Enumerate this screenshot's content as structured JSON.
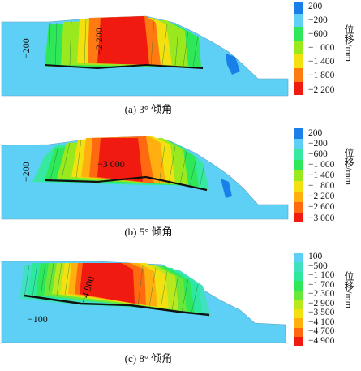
{
  "panels": [
    {
      "caption": "(a)  3° 倾角",
      "legend_values": [
        "200",
        "−200",
        "−600",
        "−1 000",
        "−1 400",
        "−1 800",
        "−2 200"
      ],
      "legend_colors": [
        "#1a7fe8",
        "#5fd0f5",
        "#2ee85a",
        "#9ae81e",
        "#f2e010",
        "#ff7a10",
        "#f01a10"
      ],
      "contour_labels": [
        "−200",
        "−2 200"
      ],
      "unit": "位移/mm"
    },
    {
      "caption": "(b)  5° 倾角",
      "legend_values": [
        "200",
        "−200",
        "−600",
        "−1 000",
        "−1 400",
        "−1 800",
        "−2 200",
        "−2 600",
        "−3 000"
      ],
      "legend_colors": [
        "#1a7fe8",
        "#5fd0f5",
        "#37e8a0",
        "#2ee85a",
        "#9ae81e",
        "#f2e010",
        "#ffb010",
        "#ff6a10",
        "#f01a10"
      ],
      "contour_labels": [
        "−200",
        "−3 000"
      ],
      "unit": "位移/mm"
    },
    {
      "caption": "(c)  8° 倾角",
      "legend_values": [
        "100",
        "−500",
        "−1 100",
        "−1 700",
        "−2 300",
        "−2 900",
        "−3 500",
        "−4 100",
        "−4 700",
        "−4 900"
      ],
      "legend_colors": [
        "#5fd0f5",
        "#40e0c0",
        "#2ee8a0",
        "#2ee85a",
        "#6ae83a",
        "#b8e81e",
        "#f2e010",
        "#ffb010",
        "#ff6a10",
        "#f01a10"
      ],
      "contour_labels": [
        "−100",
        "−4 900"
      ],
      "unit": "位移/mm"
    }
  ]
}
